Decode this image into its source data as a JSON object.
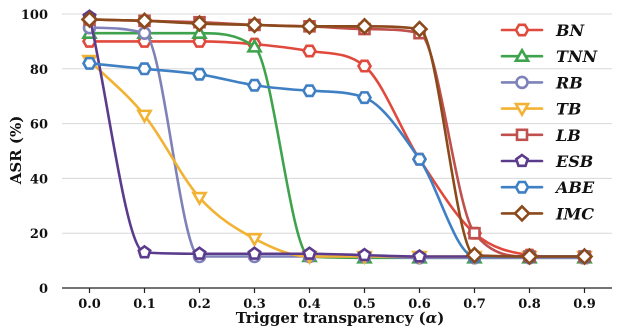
{
  "chart_data": {
    "type": "line",
    "title": "",
    "xlabel": "Trigger transparency (",
    "xlabel_symbol": "α",
    "xlabel_close": ")",
    "ylabel": "ASR (%)",
    "x": [
      0.0,
      0.1,
      0.2,
      0.3,
      0.4,
      0.5,
      0.6,
      0.7,
      0.8,
      0.9
    ],
    "x_tick_labels": [
      "0.0",
      "0.1",
      "0.2",
      "0.3",
      "0.4",
      "0.5",
      "0.6",
      "0.7",
      "0.8",
      "0.9"
    ],
    "y_tick_labels": [
      "0",
      "20",
      "40",
      "60",
      "80",
      "100"
    ],
    "xlim": [
      -0.05,
      0.95
    ],
    "ylim": [
      0,
      100
    ],
    "grid": true,
    "legend_position": "right",
    "series": [
      {
        "name": "BN",
        "color": "#e0493b",
        "marker": "hexagon",
        "values": [
          90,
          90,
          90,
          89,
          86.5,
          81,
          47,
          20,
          12,
          11
        ]
      },
      {
        "name": "TNN",
        "color": "#3fa34d",
        "marker": "triangle-up",
        "values": [
          93,
          93,
          93,
          88,
          11.5,
          11,
          11,
          11,
          11,
          11
        ]
      },
      {
        "name": "RB",
        "color": "#7f82b8",
        "marker": "circle",
        "values": [
          95,
          93,
          11.5,
          11.5,
          11.5,
          11.5,
          11,
          11,
          11,
          11
        ]
      },
      {
        "name": "TB",
        "color": "#f2b233",
        "marker": "triangle-down",
        "values": [
          83,
          63,
          33,
          18,
          11.5,
          11.5,
          11.5,
          11.5,
          11.5,
          11.5
        ]
      },
      {
        "name": "LB",
        "color": "#c0504d",
        "marker": "square",
        "values": [
          98,
          97.5,
          97,
          96,
          95.5,
          94.5,
          93,
          20,
          11.5,
          11.5
        ]
      },
      {
        "name": "ESB",
        "color": "#5b3b8c",
        "marker": "pentagon",
        "values": [
          99,
          13,
          12.5,
          12.5,
          12.5,
          12,
          11.5,
          11.5,
          11.5,
          11.5
        ]
      },
      {
        "name": "ABE",
        "color": "#3f7fc4",
        "marker": "hexagon",
        "values": [
          82,
          80,
          78,
          74,
          72,
          69.5,
          47,
          11.5,
          11.5,
          11.5
        ]
      },
      {
        "name": "IMC",
        "color": "#8b4a1c",
        "marker": "diamond",
        "values": [
          98,
          97.5,
          96.5,
          96,
          95.5,
          95.5,
          94.5,
          12,
          11.5,
          11.5
        ]
      }
    ]
  }
}
